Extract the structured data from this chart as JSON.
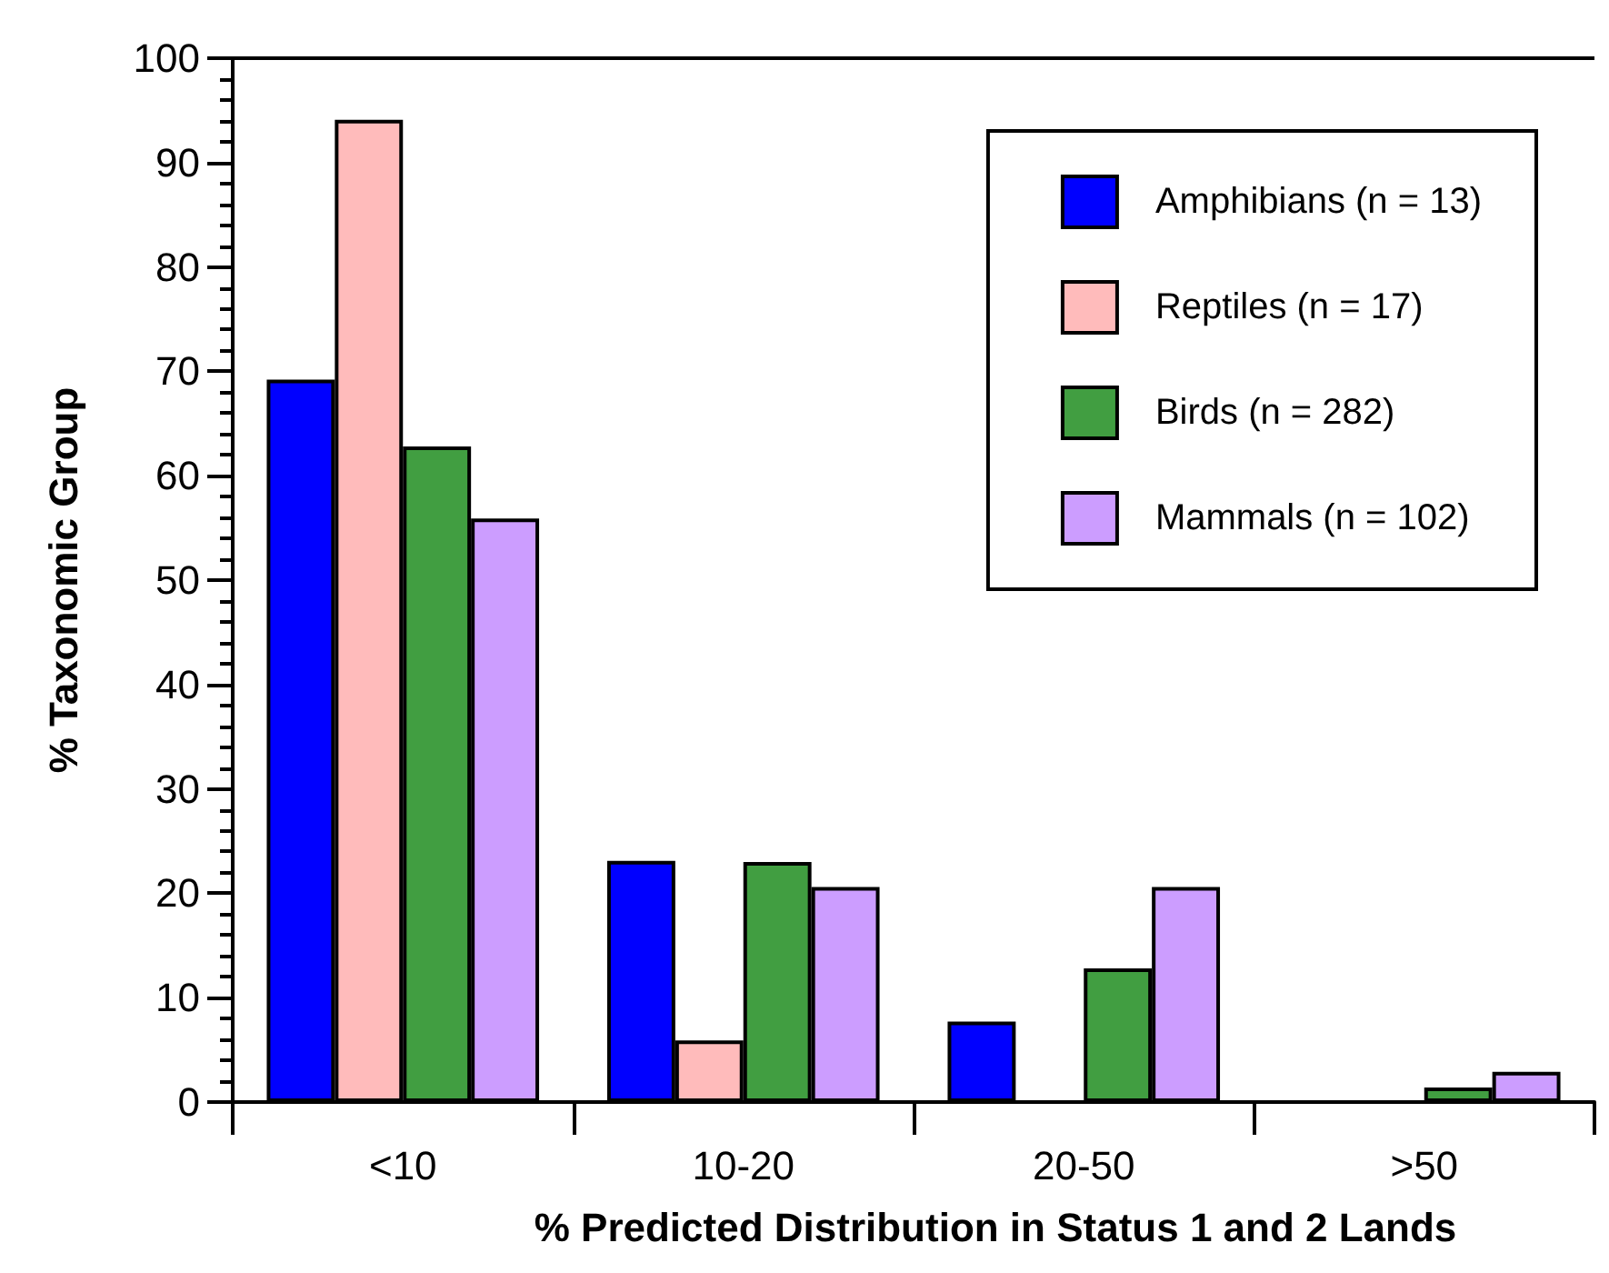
{
  "chart_data": {
    "type": "bar",
    "xlabel": "% Predicted Distribution in Status 1 and 2 Lands",
    "ylabel": "% Taxonomic Group",
    "categories": [
      "<10",
      "10-20",
      "20-50",
      ">50"
    ],
    "series": [
      {
        "name": "Amphibians (n = 13)",
        "color": "#0000ff",
        "values": [
          69.2,
          23.1,
          7.7,
          0
        ]
      },
      {
        "name": "Reptiles (n = 17)",
        "color": "#ffbbbb",
        "values": [
          94.1,
          5.9,
          0,
          0
        ]
      },
      {
        "name": "Birds (n = 282)",
        "color": "#419e41",
        "values": [
          62.8,
          23.0,
          12.8,
          1.4
        ]
      },
      {
        "name": "Mammals (n = 102)",
        "color": "#cc9dff",
        "values": [
          55.9,
          20.6,
          20.6,
          2.9
        ]
      }
    ],
    "ylim": [
      0,
      100
    ],
    "yticks": [
      0,
      10,
      20,
      30,
      40,
      50,
      60,
      70,
      80,
      90,
      100
    ],
    "grid": false,
    "legend": "top right"
  }
}
